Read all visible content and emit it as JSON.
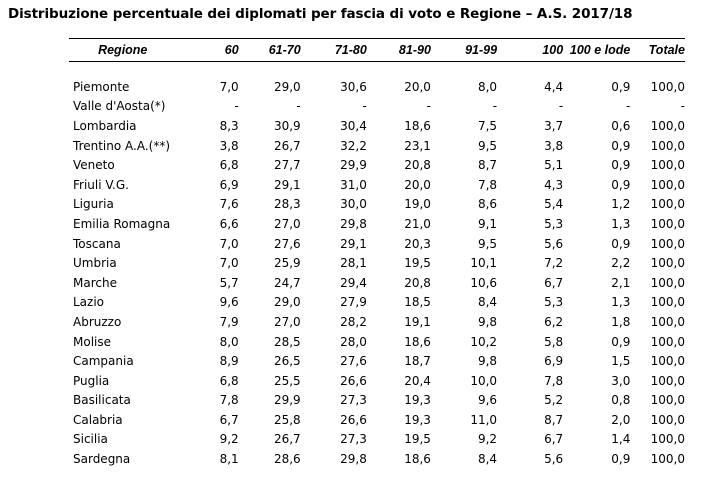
{
  "title": "Distribuzione percentuale dei diplomati per fascia di voto e Regione – A.S. 2017/18",
  "headers": [
    "Regione",
    "60",
    "61-70",
    "71-80",
    "81-90",
    "91-99",
    "100",
    "100 e lode",
    "Totale"
  ],
  "rows": [
    [
      "Piemonte",
      "7,0",
      "29,0",
      "30,6",
      "20,0",
      "8,0",
      "4,4",
      "0,9",
      "100,0"
    ],
    [
      "Valle d'Aosta(*)",
      "-",
      "-",
      "-",
      "-",
      "-",
      "-",
      "-",
      "-"
    ],
    [
      "Lombardia",
      "8,3",
      "30,9",
      "30,4",
      "18,6",
      "7,5",
      "3,7",
      "0,6",
      "100,0"
    ],
    [
      "Trentino A.A.(**)",
      "3,8",
      "26,7",
      "32,2",
      "23,1",
      "9,5",
      "3,8",
      "0,9",
      "100,0"
    ],
    [
      "Veneto",
      "6,8",
      "27,7",
      "29,9",
      "20,8",
      "8,7",
      "5,1",
      "0,9",
      "100,0"
    ],
    [
      "Friuli V.G.",
      "6,9",
      "29,1",
      "31,0",
      "20,0",
      "7,8",
      "4,3",
      "0,9",
      "100,0"
    ],
    [
      "Liguria",
      "7,6",
      "28,3",
      "30,0",
      "19,0",
      "8,6",
      "5,4",
      "1,2",
      "100,0"
    ],
    [
      "Emilia Romagna",
      "6,6",
      "27,0",
      "29,8",
      "21,0",
      "9,1",
      "5,3",
      "1,3",
      "100,0"
    ],
    [
      "Toscana",
      "7,0",
      "27,6",
      "29,1",
      "20,3",
      "9,5",
      "5,6",
      "0,9",
      "100,0"
    ],
    [
      "Umbria",
      "7,0",
      "25,9",
      "28,1",
      "19,5",
      "10,1",
      "7,2",
      "2,2",
      "100,0"
    ],
    [
      "Marche",
      "5,7",
      "24,7",
      "29,4",
      "20,8",
      "10,6",
      "6,7",
      "2,1",
      "100,0"
    ],
    [
      "Lazio",
      "9,6",
      "29,0",
      "27,9",
      "18,5",
      "8,4",
      "5,3",
      "1,3",
      "100,0"
    ],
    [
      "Abruzzo",
      "7,9",
      "27,0",
      "28,2",
      "19,1",
      "9,8",
      "6,2",
      "1,8",
      "100,0"
    ],
    [
      "Molise",
      "8,0",
      "28,5",
      "28,0",
      "18,6",
      "10,2",
      "5,8",
      "0,9",
      "100,0"
    ],
    [
      "Campania",
      "8,9",
      "26,5",
      "27,6",
      "18,7",
      "9,8",
      "6,9",
      "1,5",
      "100,0"
    ],
    [
      "Puglia",
      "6,8",
      "25,5",
      "26,6",
      "20,4",
      "10,0",
      "7,8",
      "3,0",
      "100,0"
    ],
    [
      "Basilicata",
      "7,8",
      "29,9",
      "27,3",
      "19,3",
      "9,6",
      "5,2",
      "0,8",
      "100,0"
    ],
    [
      "Calabria",
      "6,7",
      "25,8",
      "26,6",
      "19,3",
      "11,0",
      "8,7",
      "2,0",
      "100,0"
    ],
    [
      "Sicilia",
      "9,2",
      "26,7",
      "27,3",
      "19,5",
      "9,2",
      "6,7",
      "1,4",
      "100,0"
    ],
    [
      "Sardegna",
      "8,1",
      "28,6",
      "29,8",
      "18,6",
      "8,4",
      "5,6",
      "0,9",
      "100,0"
    ]
  ]
}
